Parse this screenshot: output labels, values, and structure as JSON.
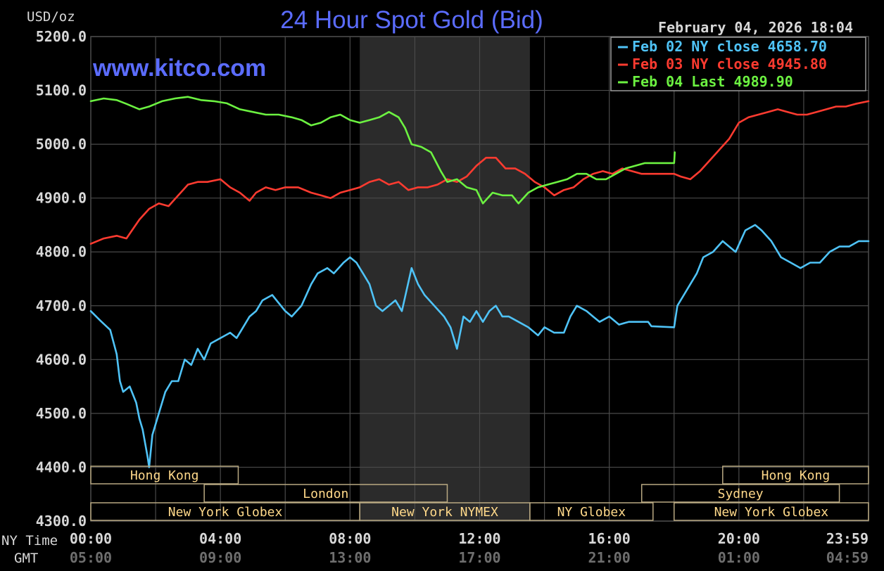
{
  "colors": {
    "background": "#000000",
    "grid": "#4a4a4a",
    "title": "#5b6cff",
    "axis_text": "#d8d8d8",
    "gmt_text": "#6e6e6e",
    "session_band": "#2b2b2b",
    "session_label": "#ffd98a",
    "session_border": "#b9a982",
    "legend_border": "#9a9a9a"
  },
  "chart_data": {
    "type": "line",
    "title": "24 Hour Spot Gold (Bid)",
    "watermark": "www.kitco.com",
    "ylabel": "USD/oz",
    "timestamp": "February 04, 2026 18:04",
    "ylim": [
      4300,
      5200
    ],
    "yticks": [
      {
        "value": 5200,
        "label": "5200.0"
      },
      {
        "value": 5100,
        "label": "5100.0"
      },
      {
        "value": 5000,
        "label": "5000.0"
      },
      {
        "value": 4900,
        "label": "4900.0"
      },
      {
        "value": 4800,
        "label": "4800.0"
      },
      {
        "value": 4700,
        "label": "4700.0"
      },
      {
        "value": 4600,
        "label": "4600.0"
      },
      {
        "value": 4500,
        "label": "4500.0"
      },
      {
        "value": 4400,
        "label": "4400.0"
      },
      {
        "value": 4300,
        "label": "4300.0"
      }
    ],
    "xlim": [
      0,
      24
    ],
    "xgrid": [
      2,
      4,
      6,
      8,
      10,
      12,
      14,
      16,
      18,
      20,
      22
    ],
    "xticks": [
      {
        "hour": 0,
        "ny": "00:00",
        "gmt": "05:00"
      },
      {
        "hour": 4,
        "ny": "04:00",
        "gmt": "09:00"
      },
      {
        "hour": 8,
        "ny": "08:00",
        "gmt": "13:00"
      },
      {
        "hour": 12,
        "ny": "12:00",
        "gmt": "17:00"
      },
      {
        "hour": 16,
        "ny": "16:00",
        "gmt": "21:00"
      },
      {
        "hour": 20,
        "ny": "20:00",
        "gmt": "01:00"
      },
      {
        "hour": 24,
        "ny": "23:59",
        "gmt": "04:59"
      }
    ],
    "x_row_labels": {
      "ny": "NY Time",
      "gmt": "GMT"
    },
    "shaded_range": [
      8.3,
      13.55
    ],
    "sessions": [
      {
        "label": "Hong Kong",
        "start": 0,
        "end": 4.55,
        "row": 0
      },
      {
        "label": "Hong Kong",
        "start": 19.5,
        "end": 24,
        "row": 0
      },
      {
        "label": "London",
        "start": 3.5,
        "end": 11,
        "row": 1
      },
      {
        "label": "Sydney",
        "start": 17,
        "end": 23.1,
        "row": 1
      },
      {
        "label": "New York Globex",
        "start": 0,
        "end": 8.3,
        "row": 2
      },
      {
        "label": "New York NYMEX",
        "start": 8.3,
        "end": 13.55,
        "row": 2
      },
      {
        "label": "NY Globex",
        "start": 13.55,
        "end": 17.35,
        "row": 2
      },
      {
        "label": "New York Globex",
        "start": 18,
        "end": 24,
        "row": 2
      }
    ],
    "series": [
      {
        "name": "Feb 02 NY close 4658.70",
        "color": "#4fc3f7",
        "points": [
          [
            0,
            4690
          ],
          [
            0.3,
            4672
          ],
          [
            0.6,
            4655
          ],
          [
            0.8,
            4610
          ],
          [
            0.9,
            4560
          ],
          [
            1.0,
            4540
          ],
          [
            1.2,
            4550
          ],
          [
            1.4,
            4520
          ],
          [
            1.5,
            4490
          ],
          [
            1.6,
            4470
          ],
          [
            1.75,
            4420
          ],
          [
            1.8,
            4400
          ],
          [
            1.9,
            4460
          ],
          [
            2.1,
            4500
          ],
          [
            2.3,
            4540
          ],
          [
            2.5,
            4560
          ],
          [
            2.7,
            4560
          ],
          [
            2.9,
            4600
          ],
          [
            3.1,
            4590
          ],
          [
            3.3,
            4620
          ],
          [
            3.5,
            4600
          ],
          [
            3.7,
            4630
          ],
          [
            4.0,
            4640
          ],
          [
            4.3,
            4650
          ],
          [
            4.5,
            4640
          ],
          [
            4.7,
            4660
          ],
          [
            4.9,
            4680
          ],
          [
            5.1,
            4690
          ],
          [
            5.3,
            4710
          ],
          [
            5.6,
            4720
          ],
          [
            5.8,
            4705
          ],
          [
            6.0,
            4690
          ],
          [
            6.2,
            4680
          ],
          [
            6.5,
            4700
          ],
          [
            6.8,
            4740
          ],
          [
            7.0,
            4760
          ],
          [
            7.3,
            4770
          ],
          [
            7.5,
            4760
          ],
          [
            7.8,
            4780
          ],
          [
            8.0,
            4790
          ],
          [
            8.2,
            4780
          ],
          [
            8.3,
            4770
          ],
          [
            8.4,
            4760
          ],
          [
            8.6,
            4740
          ],
          [
            8.8,
            4700
          ],
          [
            9.0,
            4690
          ],
          [
            9.2,
            4700
          ],
          [
            9.4,
            4710
          ],
          [
            9.6,
            4690
          ],
          [
            9.9,
            4770
          ],
          [
            10.1,
            4740
          ],
          [
            10.3,
            4720
          ],
          [
            10.6,
            4700
          ],
          [
            10.9,
            4680
          ],
          [
            11.1,
            4660
          ],
          [
            11.3,
            4620
          ],
          [
            11.5,
            4680
          ],
          [
            11.7,
            4670
          ],
          [
            11.9,
            4690
          ],
          [
            12.1,
            4670
          ],
          [
            12.3,
            4690
          ],
          [
            12.5,
            4700
          ],
          [
            12.7,
            4680
          ],
          [
            12.9,
            4680
          ],
          [
            13.2,
            4670
          ],
          [
            13.5,
            4660
          ],
          [
            13.8,
            4645
          ],
          [
            14.0,
            4660
          ],
          [
            14.3,
            4650
          ],
          [
            14.6,
            4650
          ],
          [
            14.8,
            4680
          ],
          [
            15.0,
            4700
          ],
          [
            15.3,
            4690
          ],
          [
            15.5,
            4680
          ],
          [
            15.7,
            4670
          ],
          [
            16.0,
            4680
          ],
          [
            16.3,
            4665
          ],
          [
            16.6,
            4670
          ],
          [
            17.0,
            4670
          ],
          [
            17.2,
            4670
          ],
          [
            17.3,
            4662
          ],
          [
            18.0,
            4660
          ],
          [
            18.1,
            4700
          ],
          [
            18.3,
            4720
          ],
          [
            18.5,
            4740
          ],
          [
            18.7,
            4760
          ],
          [
            18.9,
            4790
          ],
          [
            19.2,
            4800
          ],
          [
            19.5,
            4820
          ],
          [
            19.7,
            4810
          ],
          [
            19.9,
            4800
          ],
          [
            20.2,
            4840
          ],
          [
            20.5,
            4850
          ],
          [
            20.7,
            4840
          ],
          [
            21.0,
            4820
          ],
          [
            21.3,
            4790
          ],
          [
            21.6,
            4780
          ],
          [
            21.9,
            4770
          ],
          [
            22.2,
            4780
          ],
          [
            22.5,
            4780
          ],
          [
            22.8,
            4800
          ],
          [
            23.1,
            4810
          ],
          [
            23.4,
            4810
          ],
          [
            23.7,
            4820
          ],
          [
            24.0,
            4820
          ]
        ]
      },
      {
        "name": "Feb 03 NY close 4945.80",
        "color": "#ff3b30",
        "points": [
          [
            0,
            4815
          ],
          [
            0.4,
            4825
          ],
          [
            0.8,
            4830
          ],
          [
            1.1,
            4825
          ],
          [
            1.5,
            4860
          ],
          [
            1.8,
            4880
          ],
          [
            2.1,
            4890
          ],
          [
            2.4,
            4885
          ],
          [
            2.7,
            4905
          ],
          [
            3.0,
            4925
          ],
          [
            3.3,
            4930
          ],
          [
            3.6,
            4930
          ],
          [
            4.0,
            4935
          ],
          [
            4.3,
            4920
          ],
          [
            4.6,
            4910
          ],
          [
            4.9,
            4895
          ],
          [
            5.1,
            4910
          ],
          [
            5.4,
            4920
          ],
          [
            5.7,
            4915
          ],
          [
            6.0,
            4920
          ],
          [
            6.4,
            4920
          ],
          [
            6.8,
            4910
          ],
          [
            7.1,
            4905
          ],
          [
            7.4,
            4900
          ],
          [
            7.7,
            4910
          ],
          [
            8.0,
            4915
          ],
          [
            8.3,
            4920
          ],
          [
            8.6,
            4930
          ],
          [
            8.9,
            4935
          ],
          [
            9.2,
            4925
          ],
          [
            9.5,
            4930
          ],
          [
            9.8,
            4915
          ],
          [
            10.1,
            4920
          ],
          [
            10.4,
            4920
          ],
          [
            10.7,
            4925
          ],
          [
            11.0,
            4935
          ],
          [
            11.3,
            4930
          ],
          [
            11.6,
            4940
          ],
          [
            11.9,
            4960
          ],
          [
            12.2,
            4975
          ],
          [
            12.5,
            4975
          ],
          [
            12.8,
            4955
          ],
          [
            13.1,
            4955
          ],
          [
            13.4,
            4945
          ],
          [
            13.7,
            4930
          ],
          [
            14.0,
            4920
          ],
          [
            14.3,
            4905
          ],
          [
            14.6,
            4915
          ],
          [
            14.9,
            4920
          ],
          [
            15.2,
            4935
          ],
          [
            15.5,
            4945
          ],
          [
            15.8,
            4950
          ],
          [
            16.1,
            4945
          ],
          [
            16.4,
            4955
          ],
          [
            16.7,
            4950
          ],
          [
            17.0,
            4945
          ],
          [
            17.3,
            4945
          ],
          [
            18.0,
            4945
          ],
          [
            18.2,
            4940
          ],
          [
            18.5,
            4935
          ],
          [
            18.8,
            4950
          ],
          [
            19.1,
            4970
          ],
          [
            19.4,
            4990
          ],
          [
            19.7,
            5010
          ],
          [
            20.0,
            5040
          ],
          [
            20.3,
            5050
          ],
          [
            20.6,
            5055
          ],
          [
            20.9,
            5060
          ],
          [
            21.2,
            5065
          ],
          [
            21.5,
            5060
          ],
          [
            21.8,
            5055
          ],
          [
            22.1,
            5055
          ],
          [
            22.4,
            5060
          ],
          [
            22.7,
            5065
          ],
          [
            23.0,
            5070
          ],
          [
            23.3,
            5070
          ],
          [
            23.6,
            5075
          ],
          [
            24.0,
            5080
          ]
        ]
      },
      {
        "name": "Feb 04 Last 4989.90",
        "color": "#6cf241",
        "points": [
          [
            0,
            5080
          ],
          [
            0.4,
            5085
          ],
          [
            0.8,
            5082
          ],
          [
            1.1,
            5075
          ],
          [
            1.5,
            5065
          ],
          [
            1.8,
            5070
          ],
          [
            2.2,
            5080
          ],
          [
            2.6,
            5085
          ],
          [
            3.0,
            5088
          ],
          [
            3.4,
            5082
          ],
          [
            3.8,
            5080
          ],
          [
            4.2,
            5076
          ],
          [
            4.6,
            5065
          ],
          [
            5.0,
            5060
          ],
          [
            5.4,
            5055
          ],
          [
            5.8,
            5055
          ],
          [
            6.2,
            5050
          ],
          [
            6.5,
            5045
          ],
          [
            6.8,
            5035
          ],
          [
            7.1,
            5040
          ],
          [
            7.4,
            5050
          ],
          [
            7.7,
            5055
          ],
          [
            8.0,
            5045
          ],
          [
            8.3,
            5040
          ],
          [
            8.6,
            5045
          ],
          [
            8.9,
            5050
          ],
          [
            9.2,
            5060
          ],
          [
            9.5,
            5050
          ],
          [
            9.7,
            5030
          ],
          [
            9.9,
            5000
          ],
          [
            10.2,
            4995
          ],
          [
            10.5,
            4985
          ],
          [
            10.8,
            4950
          ],
          [
            11.0,
            4930
          ],
          [
            11.3,
            4935
          ],
          [
            11.6,
            4920
          ],
          [
            11.9,
            4915
          ],
          [
            12.1,
            4890
          ],
          [
            12.4,
            4910
          ],
          [
            12.7,
            4905
          ],
          [
            13.0,
            4905
          ],
          [
            13.2,
            4890
          ],
          [
            13.5,
            4910
          ],
          [
            13.8,
            4920
          ],
          [
            14.1,
            4925
          ],
          [
            14.4,
            4930
          ],
          [
            14.7,
            4935
          ],
          [
            15.0,
            4945
          ],
          [
            15.3,
            4945
          ],
          [
            15.6,
            4935
          ],
          [
            15.9,
            4935
          ],
          [
            16.2,
            4945
          ],
          [
            16.5,
            4955
          ],
          [
            16.8,
            4960
          ],
          [
            17.1,
            4965
          ],
          [
            17.4,
            4965
          ],
          [
            18.0,
            4965
          ],
          [
            18.02,
            4985
          ]
        ]
      }
    ]
  }
}
